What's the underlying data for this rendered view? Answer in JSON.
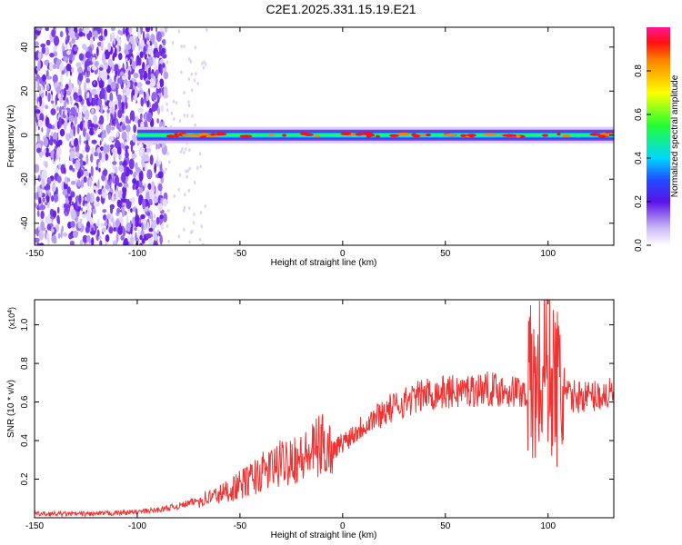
{
  "title": "C2E1.2025.331.15.19.E21",
  "chart_data": [
    {
      "type": "heatmap",
      "title": "C2E1.2025.331.15.19.E21",
      "xlabel": "Height of straight line (km)",
      "ylabel": "Frequency (Hz)",
      "xlim": [
        -150,
        132
      ],
      "ylim": [
        -50,
        49
      ],
      "xticks": [
        -150,
        -100,
        -50,
        0,
        50,
        100
      ],
      "yticks": [
        -40,
        -20,
        0,
        20,
        40
      ],
      "colorbar": {
        "label": "Normalized spectral amplitude",
        "range": [
          0,
          1
        ],
        "ticks": [
          "0.0",
          "0.2",
          "0.4",
          "0.6",
          "0.8"
        ]
      },
      "description_data": {
        "noise_region_x": [
          -150,
          -86
        ],
        "signal_band_center_hz": 0,
        "signal_start_x": -100
      }
    },
    {
      "type": "line",
      "xlabel": "Height of straight line (km)",
      "ylabel": "SNR (10 * v/v)",
      "y_scale_label": "(x10",
      "y_scale_exponent": "4",
      "y_scale_suffix": ")",
      "xlim": [
        -150,
        132
      ],
      "ylim": [
        0,
        1.13
      ],
      "xticks": [
        -150,
        -100,
        -50,
        0,
        50,
        100
      ],
      "yticks": [
        "0.2",
        "0.4",
        "0.6",
        "0.8",
        "1.0"
      ],
      "series": [
        {
          "color": "#ee3333",
          "x": [
            -150,
            -120,
            -100,
            -90,
            -80,
            -70,
            -60,
            -50,
            -40,
            -30,
            -25,
            -20,
            -10,
            -5,
            0,
            10,
            20,
            30,
            40,
            50,
            60,
            70,
            80,
            90,
            95,
            100,
            105,
            110,
            120,
            132
          ],
          "y": [
            0.02,
            0.02,
            0.03,
            0.04,
            0.06,
            0.09,
            0.12,
            0.17,
            0.23,
            0.28,
            0.32,
            0.3,
            0.38,
            0.35,
            0.39,
            0.48,
            0.55,
            0.6,
            0.64,
            0.65,
            0.66,
            0.67,
            0.66,
            0.65,
            0.7,
            0.8,
            0.65,
            0.63,
            0.63,
            0.64
          ]
        }
      ]
    }
  ]
}
